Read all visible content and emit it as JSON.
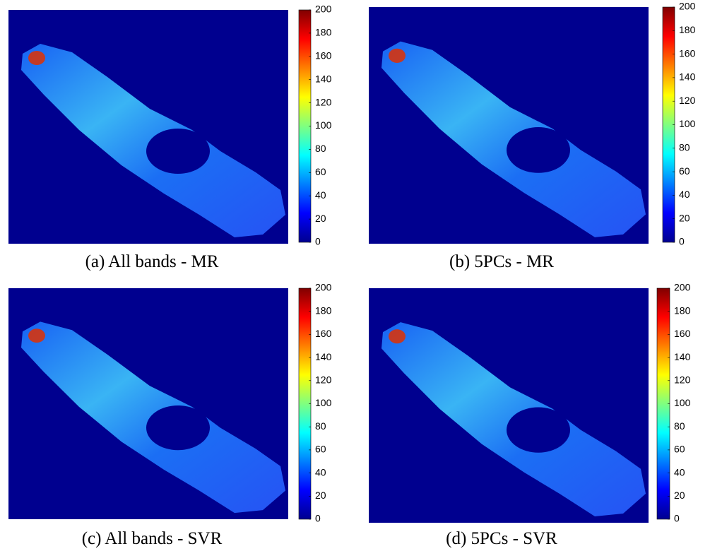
{
  "chart_data": [
    {
      "type": "colormap",
      "caption": "(a) All bands - MR",
      "colormap": "jet",
      "clim": [
        0,
        200
      ],
      "cticks": [
        0,
        20,
        40,
        60,
        80,
        100,
        120,
        140,
        160,
        180,
        200
      ]
    },
    {
      "type": "colormap",
      "caption": "(b) 5PCs - MR",
      "colormap": "jet",
      "clim": [
        0,
        200
      ],
      "cticks": [
        0,
        20,
        40,
        60,
        80,
        100,
        120,
        140,
        160,
        180,
        200
      ]
    },
    {
      "type": "colormap",
      "caption": "(c) All bands - SVR",
      "colormap": "jet",
      "clim": [
        0,
        200
      ],
      "cticks": [
        0,
        20,
        40,
        60,
        80,
        100,
        120,
        140,
        160,
        180,
        200
      ]
    },
    {
      "type": "colormap",
      "caption": "(d) 5PCs - SVR",
      "colormap": "jet",
      "clim": [
        0,
        200
      ],
      "cticks": [
        0,
        20,
        40,
        60,
        80,
        100,
        120,
        140,
        160,
        180,
        200
      ]
    }
  ]
}
